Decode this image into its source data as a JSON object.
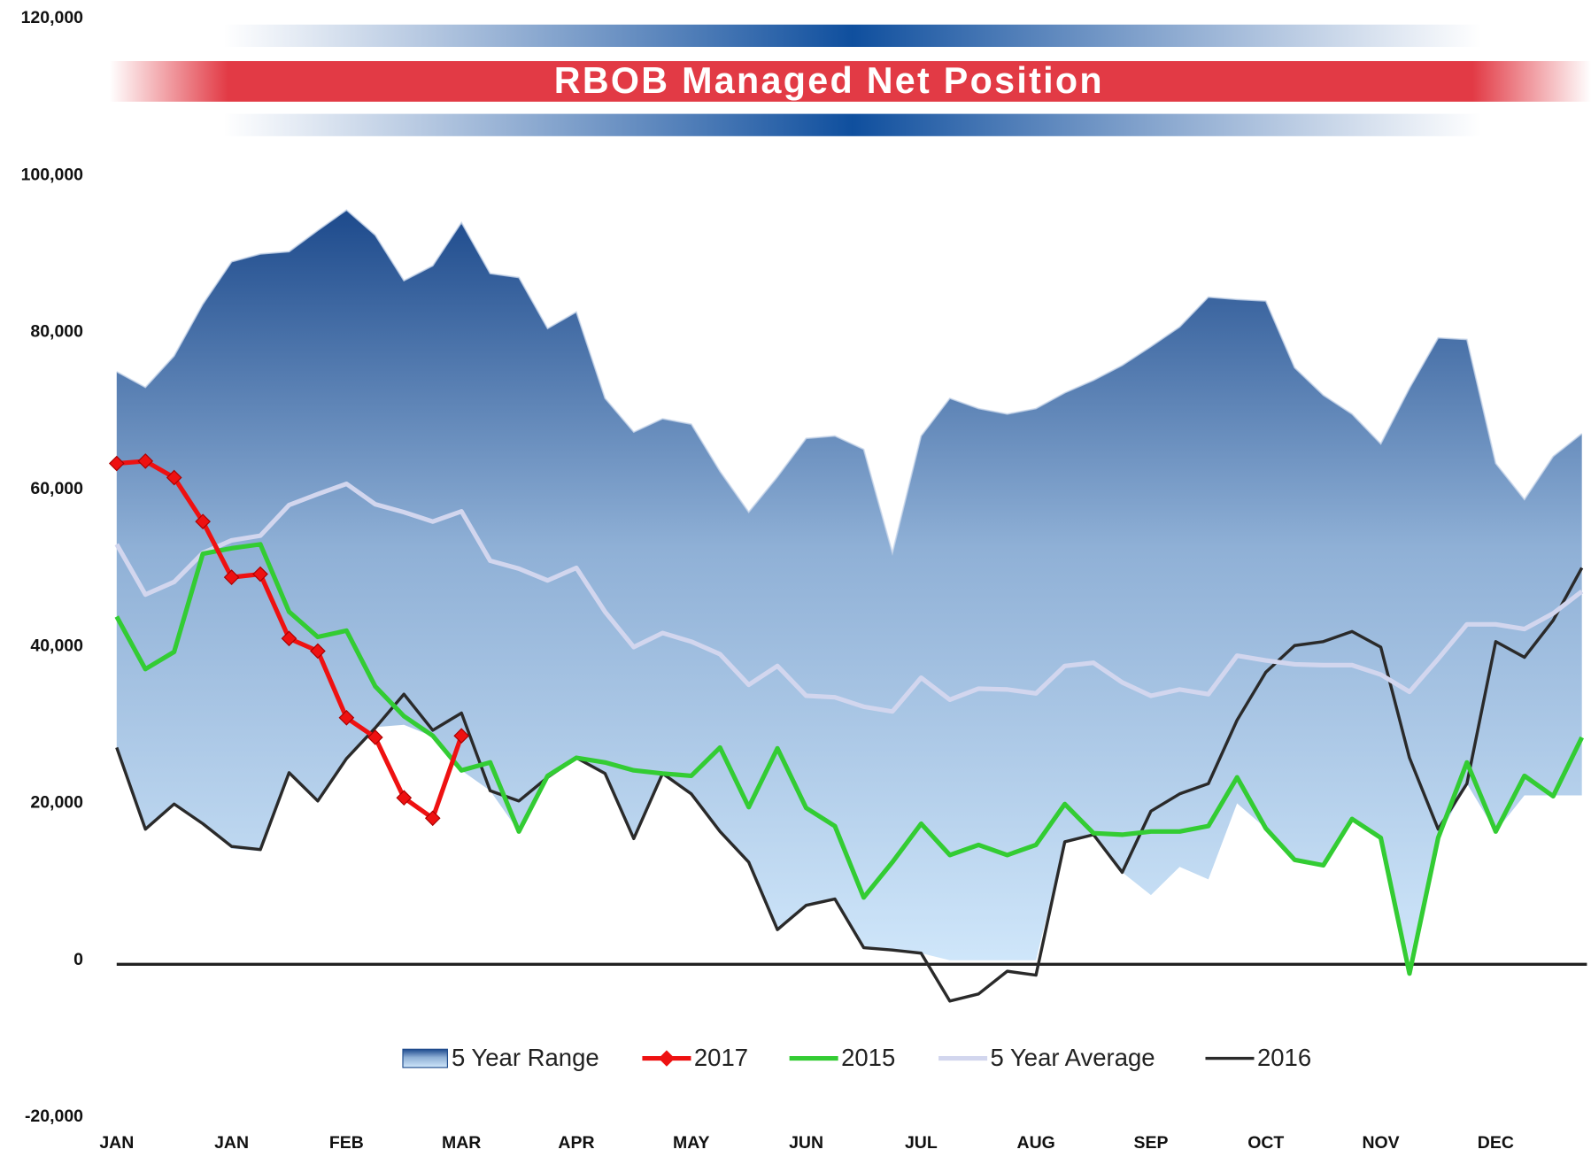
{
  "chart_data": {
    "type": "line",
    "title": "RBOB Managed Net Position",
    "categories": [
      "JAN",
      null,
      null,
      null,
      "JAN",
      null,
      null,
      null,
      "FEB",
      null,
      null,
      null,
      "MAR",
      null,
      null,
      null,
      "APR",
      null,
      null,
      null,
      "MAY",
      null,
      null,
      null,
      "JUN",
      null,
      null,
      null,
      "JUL",
      null,
      null,
      null,
      "AUG",
      null,
      null,
      null,
      "SEP",
      null,
      null,
      null,
      "OCT",
      null,
      null,
      null,
      "NOV",
      null,
      null,
      null,
      "DEC",
      null,
      null,
      null
    ],
    "ylim": [
      -20000,
      120000
    ],
    "yticks": [
      {
        "value": -20000,
        "label": "-20,000"
      },
      0,
      {
        "value": 20000,
        "label": "20,000"
      },
      {
        "value": 40000,
        "label": "40,000"
      },
      {
        "value": 60000,
        "label": "60,000"
      },
      {
        "value": 80000,
        "label": "80,000"
      },
      {
        "value": 100000,
        "label": "100,000"
      },
      {
        "value": 120000,
        "label": "120,000"
      }
    ],
    "grid": false,
    "legend": "bottom",
    "series": [
      {
        "name": "5 Year Range",
        "type": "range",
        "color": "#2c5a9a",
        "high": [
          75000,
          73000,
          77000,
          83600,
          89000,
          90000,
          90300,
          93000,
          95600,
          92400,
          86600,
          88500,
          94000,
          87500,
          87000,
          80500,
          82600,
          71600,
          67300,
          69000,
          68300,
          62300,
          57100,
          61600,
          66500,
          66800,
          65100,
          51900,
          66800,
          71600,
          70300,
          69600,
          70300,
          72300,
          73900,
          75800,
          78200,
          80700,
          84500,
          84200,
          84000,
          75500,
          72000,
          69600,
          65800,
          72900,
          79300,
          79100,
          63300,
          58700,
          64200,
          67100
        ],
        "low": [
          27000,
          16600,
          20000,
          17500,
          14200,
          13900,
          23800,
          20300,
          26000,
          29700,
          30000,
          28500,
          24200,
          21600,
          16400,
          23300,
          25800,
          23800,
          15500,
          23500,
          21200,
          16400,
          12500,
          3900,
          7000,
          7800,
          1600,
          1300,
          900,
          0,
          0,
          0,
          0,
          15100,
          16000,
          11200,
          8300,
          11900,
          10300,
          20000,
          16800,
          12800,
          12100,
          18000,
          15600,
          0,
          15600,
          22500,
          16400,
          21000,
          21000,
          21000
        ]
      },
      {
        "name": "2017",
        "color": "#ee1111",
        "marker": "diamond",
        "values": [
          63300,
          63600,
          61500,
          55900,
          48800,
          49200,
          41000,
          39400,
          30900,
          28400,
          20700,
          18100,
          28600,
          null,
          null,
          null,
          null,
          null,
          null,
          null,
          null,
          null,
          null,
          null,
          null,
          null,
          null,
          null,
          null,
          null,
          null,
          null,
          null,
          null,
          null,
          null,
          null,
          null,
          null,
          null,
          null,
          null,
          null,
          null,
          null,
          null,
          null,
          null,
          null,
          null,
          null,
          null
        ]
      },
      {
        "name": "2015",
        "color": "#33cc33",
        "values": [
          43800,
          37100,
          39300,
          51800,
          52500,
          53000,
          44400,
          41200,
          42000,
          34900,
          31100,
          28600,
          24200,
          25200,
          16400,
          23500,
          25800,
          25200,
          24200,
          23800,
          23500,
          27100,
          19500,
          27000,
          19400,
          17100,
          8000,
          12500,
          17400,
          13400,
          14700,
          13400,
          14700,
          19900,
          16200,
          16000,
          16400,
          16400,
          17100,
          23300,
          16800,
          12800,
          12100,
          18000,
          15600,
          -1700,
          15600,
          25200,
          16400,
          23500,
          20900,
          28400
        ]
      },
      {
        "name": "5 Year Average",
        "color": "#d2d6ee",
        "values": [
          53000,
          46600,
          48200,
          51900,
          53500,
          54100,
          58000,
          59400,
          60700,
          58100,
          57100,
          55900,
          57200,
          50900,
          49900,
          48400,
          50000,
          44400,
          39900,
          41700,
          40600,
          39000,
          35100,
          37500,
          33700,
          33500,
          32300,
          31700,
          36000,
          33200,
          34600,
          34500,
          34000,
          37500,
          37900,
          35400,
          33700,
          34500,
          33900,
          38800,
          38200,
          37700,
          37600,
          37600,
          36400,
          34200,
          38400,
          42800,
          42800,
          42200,
          44200,
          47000
        ]
      },
      {
        "name": "2016",
        "color": "#2a2a2a",
        "values": [
          27100,
          16700,
          19900,
          17400,
          14500,
          14100,
          23900,
          20300,
          25700,
          29600,
          33900,
          29300,
          31500,
          21600,
          20300,
          23300,
          25800,
          23800,
          15500,
          23800,
          21200,
          16400,
          12500,
          3900,
          7000,
          7800,
          1600,
          1300,
          900,
          -5200,
          -4300,
          -1400,
          -1900,
          15100,
          16000,
          11200,
          19000,
          21200,
          22500,
          30600,
          36700,
          40100,
          40600,
          41900,
          39900,
          25800,
          16700,
          22500,
          40600,
          38600,
          43300,
          50000
        ]
      }
    ]
  }
}
